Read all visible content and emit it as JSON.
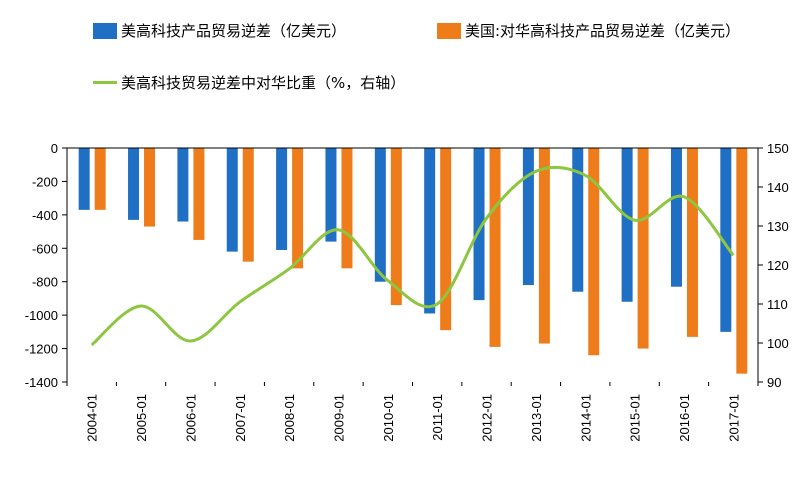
{
  "colors": {
    "us_total": "#1f6fc5",
    "us_china": "#ee7c1b",
    "share": "#8dc63f",
    "axis": "#000000"
  },
  "legend": [
    {
      "label": "美高科技产品贸易逆差（亿美元）",
      "kind": "bar",
      "color_key": "us_total"
    },
    {
      "label": "美国:对华高科技产品贸易逆差（亿美元）",
      "kind": "bar",
      "color_key": "us_china"
    },
    {
      "label": "美高科技贸易逆差中对华比重（%，右轴）",
      "kind": "line",
      "color_key": "share"
    }
  ],
  "chart_data": {
    "type": "bar",
    "categories": [
      "2004-01",
      "2005-01",
      "2006-01",
      "2007-01",
      "2008-01",
      "2009-01",
      "2010-01",
      "2011-01",
      "2012-01",
      "2013-01",
      "2014-01",
      "2015-01",
      "2016-01",
      "2017-01"
    ],
    "series": [
      {
        "name": "美高科技产品贸易逆差（亿美元）",
        "values": [
          -370,
          -430,
          -440,
          -620,
          -610,
          -560,
          -800,
          -990,
          -910,
          -820,
          -860,
          -920,
          -830,
          -1100
        ]
      },
      {
        "name": "美国:对华高科技产品贸易逆差（亿美元）",
        "values": [
          -370,
          -470,
          -550,
          -680,
          -720,
          -720,
          -940,
          -1090,
          -1190,
          -1170,
          -1240,
          -1200,
          -1130,
          -1350
        ]
      }
    ],
    "line_series": {
      "name": "美高科技贸易逆差中对华比重（%，右轴）",
      "axis": "right",
      "values": [
        99.5,
        109.5,
        100.5,
        110.5,
        119,
        129,
        116,
        110,
        132,
        144,
        143,
        131.5,
        137.5,
        122.5
      ]
    },
    "ylim": [
      -1400,
      0
    ],
    "yticks": [
      0,
      -200,
      -400,
      -600,
      -800,
      -1000,
      -1200,
      -1400
    ],
    "ylim_right": [
      90,
      150
    ],
    "yticks_right": [
      150,
      140,
      130,
      120,
      110,
      100,
      90
    ],
    "legend_position": "top-left",
    "grid": false
  }
}
